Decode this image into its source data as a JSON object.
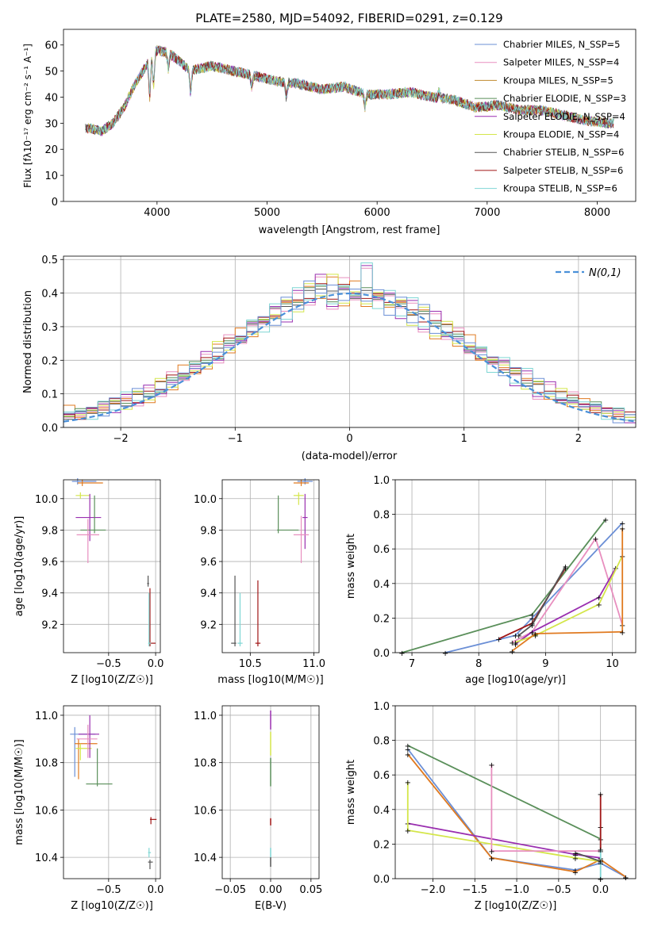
{
  "colors": {
    "chabrier_miles": "#6b8fd6",
    "salpeter_miles": "#e88fbf",
    "kroupa_miles": "#c08a2e",
    "chabrier_elodie": "#5a8f5a",
    "salpeter_elodie": "#9a2fb0",
    "kroupa_elodie": "#d4e64a",
    "chabrier_stelib": "#555555",
    "salpeter_stelib": "#a01515",
    "kroupa_stelib": "#7fd6d4",
    "normal": "#4a90d9",
    "orange": "#e07a20"
  },
  "chart_data": [
    {
      "type": "line",
      "title": "PLATE=2580, MJD=54092, FIBERID=0291, z=0.129",
      "xlabel": "wavelength [Angstrom, rest frame]",
      "ylabel": "Flux [fλ10⁻¹⁷ erg cm⁻² s⁻¹ A⁻¹]",
      "xlim": [
        3150,
        8350
      ],
      "ylim": [
        0,
        66
      ],
      "xticks": [
        4000,
        5000,
        6000,
        7000,
        8000
      ],
      "yticks": [
        0,
        10,
        20,
        30,
        40,
        50,
        60
      ],
      "grid": false,
      "legend": "top-right",
      "legend_entries": [
        "Chabrier MILES, N_SSP=5",
        "Salpeter MILES, N_SSP=4",
        "Kroupa MILES, N_SSP=5",
        "Chabrier ELODIE, N_SSP=3",
        "Salpeter ELODIE, N_SSP=4",
        "Kroupa ELODIE, N_SSP=4",
        "Chabrier STELIB, N_SSP=6",
        "Salpeter STELIB, N_SSP=6",
        "Kroupa STELIB, N_SSP=6"
      ],
      "x": [
        3400,
        3500,
        3600,
        3700,
        3800,
        3900,
        4000,
        4100,
        4200,
        4300,
        4500,
        4700,
        4900,
        5100,
        5300,
        5500,
        5700,
        5900,
        6100,
        6300,
        6500,
        6700,
        6900,
        7100,
        7300,
        7500,
        7700,
        7900,
        8100
      ],
      "y": [
        28,
        27,
        30,
        36,
        45,
        52,
        58,
        57,
        54,
        50,
        52,
        50,
        48,
        46,
        45,
        43,
        44,
        41,
        41,
        42,
        40,
        39,
        36,
        37,
        35,
        35,
        33,
        31,
        30
      ]
    },
    {
      "type": "bar",
      "xlabel": "(data-model)/error",
      "ylabel": "Normed distribution",
      "xlim": [
        -2.5,
        2.5
      ],
      "ylim": [
        0,
        0.51
      ],
      "xticks": [
        -2,
        -1,
        0,
        1,
        2
      ],
      "yticks": [
        0.0,
        0.1,
        0.2,
        0.3,
        0.4,
        0.5
      ],
      "grid": true,
      "legend": "top-right",
      "legend_entries": [
        "N(0,1)"
      ],
      "bin_edges": [
        -2.5,
        -2.4,
        -2.3,
        -2.2,
        -2.1,
        -2.0,
        -1.9,
        -1.8,
        -1.7,
        -1.6,
        -1.5,
        -1.4,
        -1.3,
        -1.2,
        -1.1,
        -1.0,
        -0.9,
        -0.8,
        -0.7,
        -0.6,
        -0.5,
        -0.4,
        -0.3,
        -0.2,
        -0.1,
        0.0,
        0.1,
        0.2,
        0.3,
        0.4,
        0.5,
        0.6,
        0.7,
        0.8,
        0.9,
        1.0,
        1.1,
        1.2,
        1.3,
        1.4,
        1.5,
        1.6,
        1.7,
        1.8,
        1.9,
        2.0,
        2.1,
        2.2,
        2.3,
        2.4,
        2.5
      ],
      "series": [
        {
          "values": [
            0.04,
            0.04,
            0.05,
            0.06,
            0.07,
            0.08,
            0.09,
            0.1,
            0.12,
            0.14,
            0.16,
            0.18,
            0.2,
            0.22,
            0.25,
            0.27,
            0.3,
            0.32,
            0.34,
            0.36,
            0.38,
            0.4,
            0.42,
            0.39,
            0.41,
            0.4,
            0.4,
            0.39,
            0.38,
            0.36,
            0.35,
            0.33,
            0.31,
            0.29,
            0.27,
            0.24,
            0.22,
            0.2,
            0.18,
            0.16,
            0.14,
            0.12,
            0.1,
            0.09,
            0.08,
            0.07,
            0.06,
            0.05,
            0.04,
            0.03
          ]
        },
        {
          "values": [
            0.03,
            0.05,
            0.04,
            0.07,
            0.06,
            0.09,
            0.08,
            0.11,
            0.1,
            0.15,
            0.14,
            0.19,
            0.21,
            0.2,
            0.26,
            0.25,
            0.32,
            0.3,
            0.36,
            0.33,
            0.4,
            0.38,
            0.44,
            0.36,
            0.43,
            0.38,
            0.49,
            0.37,
            0.4,
            0.34,
            0.37,
            0.3,
            0.33,
            0.27,
            0.28,
            0.22,
            0.24,
            0.18,
            0.2,
            0.14,
            0.16,
            0.1,
            0.12,
            0.08,
            0.09,
            0.06,
            0.07,
            0.04,
            0.05,
            0.03
          ]
        },
        {
          "values": [
            0.05,
            0.03,
            0.06,
            0.05,
            0.08,
            0.07,
            0.1,
            0.09,
            0.13,
            0.12,
            0.17,
            0.16,
            0.19,
            0.24,
            0.23,
            0.28,
            0.27,
            0.33,
            0.32,
            0.38,
            0.36,
            0.42,
            0.4,
            0.44,
            0.37,
            0.42,
            0.36,
            0.41,
            0.35,
            0.38,
            0.32,
            0.35,
            0.28,
            0.3,
            0.25,
            0.26,
            0.2,
            0.21,
            0.17,
            0.17,
            0.13,
            0.13,
            0.1,
            0.1,
            0.07,
            0.07,
            0.05,
            0.05,
            0.03,
            0.03
          ]
        }
      ],
      "normal_curve": {
        "mean": 0,
        "sigma": 1
      }
    },
    {
      "type": "scatter",
      "xlabel": "Z [log10(Z/Z☉)]",
      "ylabel": "age  [log10(age/yr)]",
      "xlim": [
        -0.98,
        0.05
      ],
      "ylim": [
        9.02,
        10.12
      ],
      "xticks": [
        -0.5,
        0.0
      ],
      "yticks": [
        9.2,
        9.4,
        9.6,
        9.8,
        10.0
      ],
      "grid": true
    },
    {
      "type": "scatter",
      "xlabel": "mass [log10(M/M☉)]",
      "ylabel": "",
      "xlim": [
        10.28,
        11.04
      ],
      "ylim": [
        9.02,
        10.12
      ],
      "xticks": [
        10.5,
        11.0
      ],
      "yticks": [
        9.2,
        9.4,
        9.6,
        9.8,
        10.0
      ],
      "grid": true
    },
    {
      "type": "line",
      "xlabel": "age  [log10(age/yr)]",
      "ylabel": "mass weight",
      "xlim": [
        6.75,
        10.35
      ],
      "ylim": [
        0,
        1.0
      ],
      "xticks": [
        7,
        8,
        9,
        10
      ],
      "yticks": [
        0.0,
        0.2,
        0.4,
        0.6,
        0.8,
        1.0
      ],
      "grid": true
    },
    {
      "type": "scatter",
      "xlabel": "Z [log10(Z/Z☉)]",
      "ylabel": "mass [log10(M/M☉)]",
      "xlim": [
        -0.98,
        0.05
      ],
      "ylim": [
        10.31,
        11.04
      ],
      "xticks": [
        -0.5,
        0.0
      ],
      "yticks": [
        10.4,
        10.6,
        10.8,
        11.0
      ],
      "grid": true
    },
    {
      "type": "scatter",
      "xlabel": "E(B-V)",
      "ylabel": "",
      "xlim": [
        -0.06,
        0.06
      ],
      "ylim": [
        10.31,
        11.04
      ],
      "xticks": [
        -0.05,
        0.0,
        0.05
      ],
      "yticks": [
        10.4,
        10.6,
        10.8,
        11.0
      ],
      "grid": true
    },
    {
      "type": "line",
      "xlabel": "Z [log10(Z/Z☉)]",
      "ylabel": "mass weight",
      "xlim": [
        -2.45,
        0.42
      ],
      "ylim": [
        0,
        1.0
      ],
      "xticks": [
        -2.0,
        -1.5,
        -1.0,
        -0.5,
        0.0
      ],
      "yticks": [
        0.0,
        0.2,
        0.4,
        0.6,
        0.8,
        1.0
      ],
      "grid": true
    }
  ]
}
